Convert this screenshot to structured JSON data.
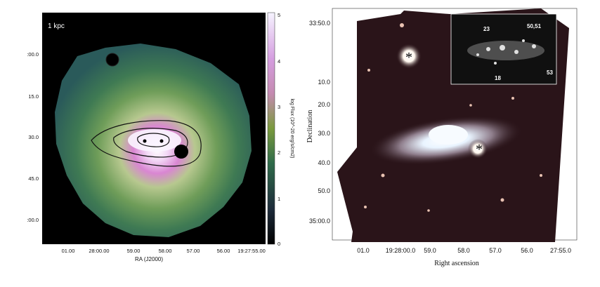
{
  "left_panel": {
    "scale_label": "1 kpc",
    "y_ticks": [
      ":00.0",
      "15.0",
      "30.0",
      "45.0",
      ":00.0"
    ],
    "x_ticks": [
      "01.00",
      "28:00.00",
      "59.00",
      "58.00",
      "57.00",
      "56.00",
      "19:27:55.00"
    ],
    "xlabel": "RA (J2000)",
    "colorbar": {
      "label": "log Flux (10^-20 erg/s/cm2)",
      "ticks": [
        "5",
        "4",
        "3",
        "2",
        "1",
        "0"
      ]
    }
  },
  "right_panel": {
    "y_ticks": [
      "33:50.0",
      "10.0",
      "20.0",
      "30.0",
      "40.0",
      "50.0",
      "35:00.0"
    ],
    "ylabel": "Declination",
    "x_ticks": [
      "01.0",
      "19:28:00.0",
      "59.0",
      "58.0",
      "57.0",
      "56.0",
      "27:55.0"
    ],
    "xlabel": "Right ascension",
    "inset_labels": [
      "23",
      "50,51",
      "18",
      "53"
    ],
    "star_markers": [
      "*",
      "*"
    ]
  }
}
